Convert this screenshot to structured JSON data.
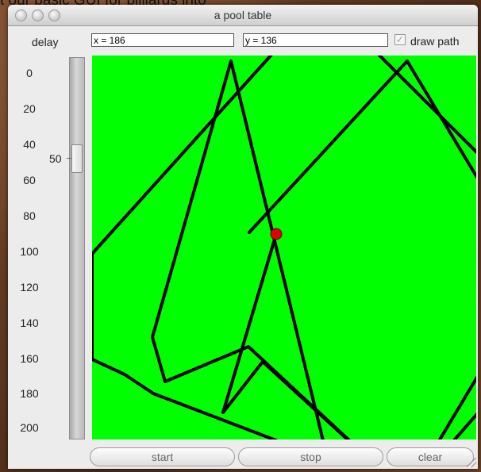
{
  "background_text": "t our basic GUI for billiards into",
  "window": {
    "title": "a pool table"
  },
  "delay": {
    "label": "delay",
    "value_label": "50",
    "value": 50,
    "min": 0,
    "max": 200,
    "ticks": [
      "0",
      "20",
      "40",
      "60",
      "80",
      "100",
      "120",
      "140",
      "160",
      "180",
      "200"
    ]
  },
  "coords": {
    "x_text": "x = 186",
    "y_text": "y = 136"
  },
  "draw_path": {
    "label": "draw path",
    "checked": true,
    "check_glyph": "✓"
  },
  "buttons": {
    "start": "start",
    "stop": "stop",
    "clear": "clear"
  },
  "table": {
    "felt_color": "#00ff00",
    "path_color": "#000000",
    "ball_color": "#e00000",
    "path": [
      [
        198,
        223
      ],
      [
        397,
        7
      ],
      [
        591,
        330
      ],
      [
        397,
        553
      ],
      [
        197,
        367
      ],
      [
        92,
        411
      ],
      [
        76,
        355
      ],
      [
        175,
        7
      ],
      [
        297,
        510
      ],
      [
        77,
        426
      ],
      [
        41,
        402
      ],
      [
        0,
        383
      ],
      [
        0,
        250
      ],
      [
        290,
        -72
      ],
      [
        591,
        228
      ],
      [
        397,
        553
      ],
      [
        215,
        386
      ],
      [
        165,
        450
      ],
      [
        232,
        225
      ]
    ],
    "ball": [
      232,
      225
    ]
  }
}
